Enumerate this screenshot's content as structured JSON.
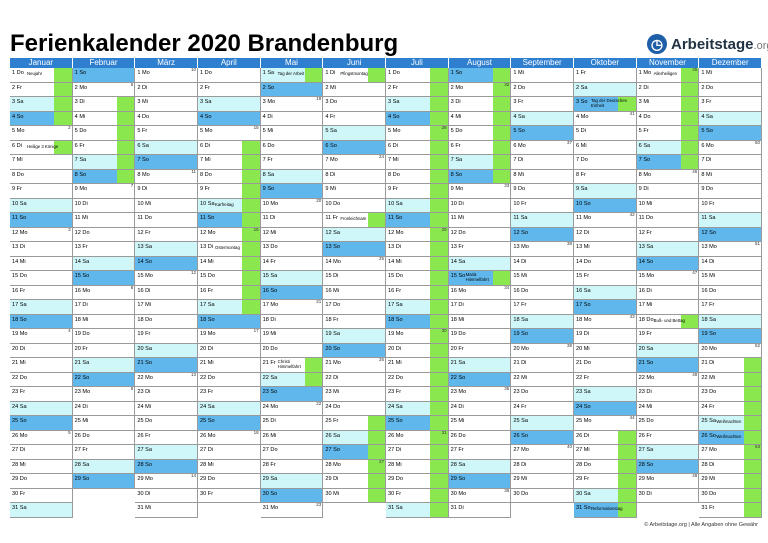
{
  "title": "Ferienkalender 2020 Brandenburg",
  "logo": {
    "name": "Arbeitstage",
    "tld": ".org",
    "icon": "clock-icon"
  },
  "footer": "© Arbeitstage.org | Alle Angaben ohne Gewähr",
  "colors": {
    "header": "#2f7fd0",
    "saturday": "#cff6f8",
    "sunday": "#5fb7ec",
    "vacation": "#8ae84e"
  },
  "year": 2020,
  "months": [
    {
      "name": "Januar",
      "days": 31,
      "startWeekday": 3
    },
    {
      "name": "Februar",
      "days": 29,
      "startWeekday": 6
    },
    {
      "name": "März",
      "days": 31,
      "startWeekday": 0
    },
    {
      "name": "April",
      "days": 30,
      "startWeekday": 3
    },
    {
      "name": "Mai",
      "days": 31,
      "startWeekday": 5
    },
    {
      "name": "Juni",
      "days": 30,
      "startWeekday": 1
    },
    {
      "name": "Juli",
      "days": 31,
      "startWeekday": 3
    },
    {
      "name": "August",
      "days": 31,
      "startWeekday": 6
    },
    {
      "name": "September",
      "days": 30,
      "startWeekday": 2
    },
    {
      "name": "Oktober",
      "days": 31,
      "startWeekday": 4
    },
    {
      "name": "November",
      "days": 30,
      "startWeekday": 0
    },
    {
      "name": "Dezember",
      "days": 31,
      "startWeekday": 2
    }
  ],
  "weekdays": [
    "Mo",
    "Di",
    "Mi",
    "Do",
    "Fr",
    "Sa",
    "So"
  ],
  "holidays": [
    {
      "month": 1,
      "day": 1,
      "name": "Neujahr"
    },
    {
      "month": 1,
      "day": 6,
      "name": "Heilige 3 Könige"
    },
    {
      "month": 4,
      "day": 10,
      "name": "Karfreitag"
    },
    {
      "month": 4,
      "day": 13,
      "name": "Ostermontag"
    },
    {
      "month": 5,
      "day": 1,
      "name": "Tag der Arbeit"
    },
    {
      "month": 5,
      "day": 21,
      "name": "Christi\nHimmelfahrt"
    },
    {
      "month": 6,
      "day": 1,
      "name": "Pfingstmontag"
    },
    {
      "month": 6,
      "day": 11,
      "name": "Fronleichnam"
    },
    {
      "month": 8,
      "day": 15,
      "name": "Mariä\nHimmelfahrt"
    },
    {
      "month": 10,
      "day": 3,
      "name": "Tag der Deutschen\nEinheit"
    },
    {
      "month": 10,
      "day": 31,
      "name": "Reformationstag"
    },
    {
      "month": 11,
      "day": 1,
      "name": "Allerheiligen"
    },
    {
      "month": 11,
      "day": 18,
      "name": "Buß- und Bettag"
    },
    {
      "month": 12,
      "day": 25,
      "name": "Weihnachten"
    },
    {
      "month": 12,
      "day": 26,
      "name": "Weihnachten"
    }
  ],
  "vacations": [
    {
      "month": 1,
      "from": 1,
      "to": 4
    },
    {
      "month": 2,
      "from": 3,
      "to": 8
    },
    {
      "month": 4,
      "from": 6,
      "to": 17
    },
    {
      "month": 5,
      "from": 22,
      "to": 22
    },
    {
      "month": 6,
      "from": 25,
      "to": 30
    },
    {
      "month": 7,
      "from": 1,
      "to": 31
    },
    {
      "month": 8,
      "from": 1,
      "to": 8
    },
    {
      "month": 10,
      "from": 26,
      "to": 31
    },
    {
      "month": 11,
      "from": 1,
      "to": 7
    },
    {
      "month": 12,
      "from": 21,
      "to": 31
    }
  ]
}
